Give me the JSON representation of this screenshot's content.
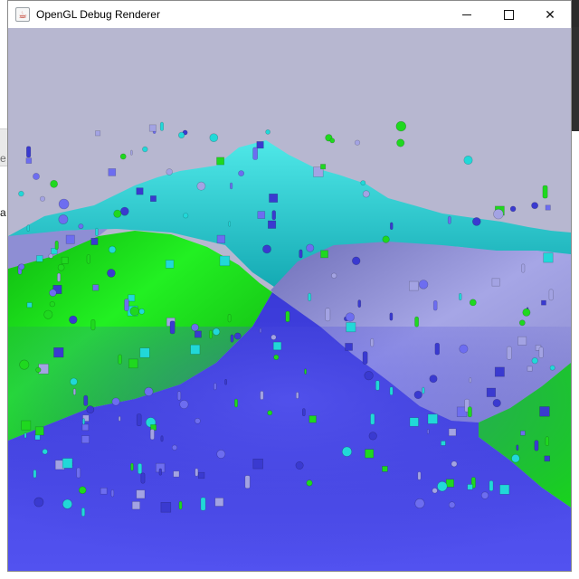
{
  "window": {
    "title": "OpenGL Debug Renderer",
    "icon": "java-cup-icon",
    "controls": [
      "minimize",
      "maximize",
      "close"
    ],
    "close_glyph": "✕"
  },
  "scene": {
    "background_color": "#b7b7d0",
    "terrain_colors": {
      "cyan": "#27d6d6",
      "green": "#1ee81e",
      "lavender": "#8f8fd6",
      "blue": "#4f4fe8"
    },
    "particle_colors": [
      "#21d8d8",
      "#1fd81f",
      "#6d6df0",
      "#a3a3e3",
      "#3a3ad0"
    ]
  },
  "desktop": {
    "left_chars": [
      "e",
      "a"
    ]
  }
}
